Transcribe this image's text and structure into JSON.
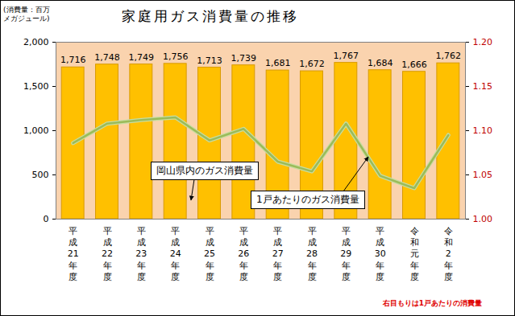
{
  "chart_data": {
    "type": "bar",
    "title": "家庭用ガス消費量の推移",
    "ylabel": "(消費量：百万\nメガジュール)",
    "categories": [
      "平成21年度",
      "平成22年度",
      "平成23年度",
      "平成24年度",
      "平成25年度",
      "平成26年度",
      "平成27年度",
      "平成28年度",
      "平成29年度",
      "平成30年度",
      "令和元年度",
      "令和2年度"
    ],
    "series": [
      {
        "name": "岡山県内のガス消費量",
        "type": "bar",
        "color": "#FFC000",
        "data_labels": true,
        "values": [
          1716,
          1748,
          1749,
          1756,
          1713,
          1739,
          1681,
          1672,
          1767,
          1684,
          1666,
          1762
        ],
        "value_labels": [
          "1,716",
          "1,748",
          "1,749",
          "1,756",
          "1,713",
          "1,739",
          "1,681",
          "1,672",
          "1,767",
          "1,684",
          "1,666",
          "1,762"
        ]
      },
      {
        "name": "1戸あたりのガス消費量",
        "type": "line",
        "axis": "y2",
        "color": "#9BBB59",
        "values": [
          1.086,
          1.108,
          1.112,
          1.115,
          1.089,
          1.102,
          1.065,
          1.054,
          1.108,
          1.049,
          1.035,
          1.095
        ]
      }
    ],
    "ylim": [
      0,
      2000
    ],
    "yticks": [
      0,
      500,
      {
        "value": 1000,
        "label": "1,000"
      },
      {
        "value": 1500,
        "label": "1,500"
      },
      {
        "value": 2000,
        "label": "2,000"
      }
    ],
    "y2lim": [
      1.0,
      1.2
    ],
    "y2ticks": [
      {
        "value": 1.0,
        "label": "1.00"
      },
      {
        "value": 1.05,
        "label": "1.05"
      },
      {
        "value": 1.1,
        "label": "1.10"
      },
      {
        "value": 1.15,
        "label": "1.15"
      },
      {
        "value": 1.2,
        "label": "1.20"
      }
    ],
    "annotations": [
      {
        "text": "右目もりは1戸あたりの消費量"
      }
    ]
  }
}
